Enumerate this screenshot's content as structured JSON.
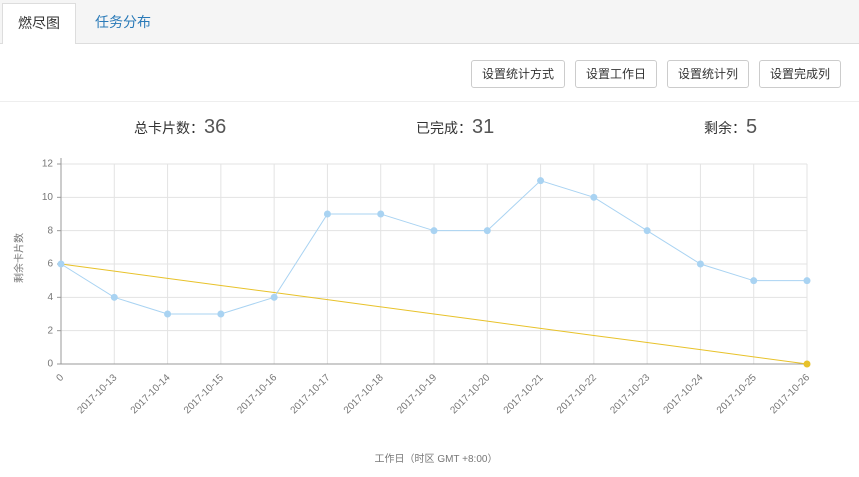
{
  "tabs": [
    "燃尽图",
    "任务分布"
  ],
  "buttons": [
    "设置统计方式",
    "设置工作日",
    "设置统计列",
    "设置完成列"
  ],
  "stats": [
    {
      "label": "总卡片数：",
      "value": 36
    },
    {
      "label": "已完成：",
      "value": 31
    },
    {
      "label": "剩余：",
      "value": 5
    }
  ],
  "chart_data": {
    "type": "line",
    "x_label": "工作日（时区 GMT +8:00）",
    "y_label": "剩余卡片数",
    "categories": [
      "0",
      "2017-10-13",
      "2017-10-14",
      "2017-10-15",
      "2017-10-16",
      "2017-10-17",
      "2017-10-18",
      "2017-10-19",
      "2017-10-20",
      "2017-10-21",
      "2017-10-22",
      "2017-10-23",
      "2017-10-24",
      "2017-10-25",
      "2017-10-26"
    ],
    "series": [
      {
        "color": "#a9d3f2",
        "marker": true,
        "values": [
          6,
          4,
          3,
          3,
          4,
          9,
          9,
          8,
          8,
          11,
          10,
          8,
          6,
          5,
          5
        ]
      },
      {
        "color": "#e8c22a",
        "marker": false,
        "values": [
          6,
          5.57,
          5.14,
          4.71,
          4.29,
          3.86,
          3.43,
          3,
          2.57,
          2.14,
          1.71,
          1.29,
          0.86,
          0.43,
          0
        ]
      }
    ],
    "ylim": [
      0,
      12
    ],
    "yticks": [
      0,
      2,
      4,
      6,
      8,
      10,
      12
    ],
    "grid": true
  }
}
